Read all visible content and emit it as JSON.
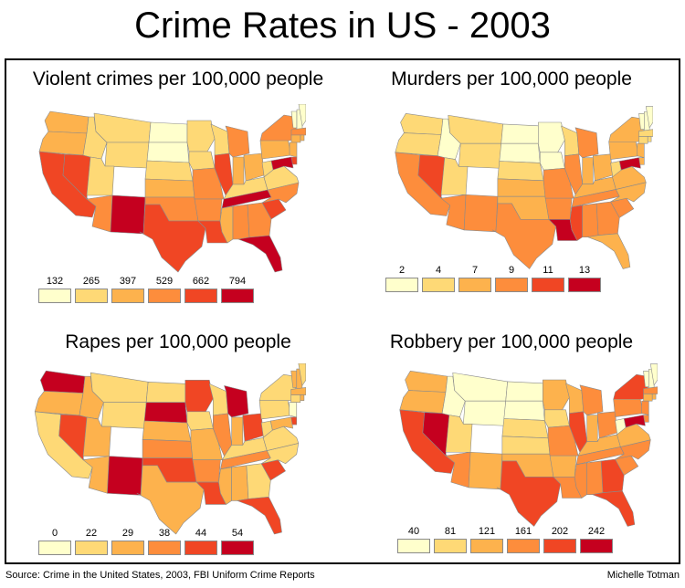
{
  "title": "Crime Rates in US - 2003",
  "source": "Source: Crime in the United States, 2003, FBI Uniform Crime Reports",
  "author": "Michelle Totman",
  "colors": {
    "scale": [
      "#ffffcc",
      "#fed976",
      "#fdb24d",
      "#fd8d3c",
      "#f04624",
      "#c5001f"
    ],
    "border": "#8a8a8a"
  },
  "panels": [
    {
      "id": "violent",
      "title": "Violent crimes per 100,000 people",
      "legend": [
        "132",
        "265",
        "397",
        "529",
        "662",
        "794"
      ],
      "regions": {
        "WA": 2,
        "OR": 2,
        "CA": 4,
        "NV": 4,
        "ID": 1,
        "MT": 1,
        "WY": 1,
        "UT": 1,
        "AZ": 3,
        "NM": 5,
        "ND": 0,
        "SD": 0,
        "NE": 1,
        "KS": 2,
        "OK": 3,
        "TX": 4,
        "MN": 1,
        "IA": 1,
        "MO": 3,
        "AR": 3,
        "LA": 4,
        "WI": 1,
        "IL": 4,
        "MI": 3,
        "IN": 2,
        "OH": 2,
        "KY": 1,
        "TN": 5,
        "MS": 2,
        "AL": 3,
        "GA": 3,
        "FL": 5,
        "SC": 4,
        "NC": 3,
        "VA": 1,
        "WV": 1,
        "PA": 2,
        "NY": 3,
        "VT": 0,
        "NH": 0,
        "ME": 0,
        "MA": 3,
        "CT": 2,
        "NJ": 2,
        "DE": 4,
        "MD": 5,
        "RI": 2
      }
    },
    {
      "id": "murders",
      "title": "Murders per 100,000 people",
      "legend": [
        "2",
        "4",
        "7",
        "9",
        "11",
        "13"
      ],
      "regions": {
        "WA": 1,
        "OR": 1,
        "CA": 3,
        "NV": 4,
        "ID": 0,
        "MT": 1,
        "WY": 1,
        "UT": 1,
        "AZ": 3,
        "NM": 3,
        "ND": 0,
        "SD": 0,
        "NE": 1,
        "KS": 2,
        "OK": 2,
        "TX": 3,
        "MN": 0,
        "IA": 0,
        "MO": 3,
        "AR": 3,
        "LA": 5,
        "WI": 1,
        "IL": 3,
        "MI": 3,
        "IN": 2,
        "OH": 2,
        "KY": 2,
        "TN": 3,
        "MS": 4,
        "AL": 3,
        "GA": 3,
        "FL": 2,
        "SC": 3,
        "NC": 2,
        "VA": 2,
        "WV": 1,
        "PA": 2,
        "NY": 2,
        "VT": 0,
        "NH": 0,
        "ME": 0,
        "MA": 1,
        "CT": 1,
        "NJ": 2,
        "DE": 2,
        "MD": 5,
        "RI": 1
      }
    },
    {
      "id": "rapes",
      "title": "Rapes per 100,000 people",
      "legend": [
        "0",
        "22",
        "29",
        "38",
        "44",
        "54"
      ],
      "regions": {
        "WA": 5,
        "OR": 2,
        "CA": 1,
        "NV": 4,
        "ID": 2,
        "MT": 1,
        "WY": 1,
        "UT": 2,
        "AZ": 2,
        "NM": 5,
        "ND": 1,
        "SD": 5,
        "NE": 2,
        "KS": 3,
        "OK": 4,
        "TX": 2,
        "MN": 4,
        "IA": 1,
        "MO": 2,
        "AR": 3,
        "LA": 4,
        "WI": 1,
        "IL": 3,
        "MI": 5,
        "IN": 2,
        "OH": 4,
        "KY": 1,
        "TN": 3,
        "MS": 2,
        "AL": 2,
        "GA": 1,
        "FL": 4,
        "SC": 4,
        "NC": 1,
        "VA": 1,
        "WV": 1,
        "PA": 1,
        "NY": 1,
        "VT": 2,
        "NH": 2,
        "ME": 1,
        "MA": 2,
        "CT": 1,
        "NJ": 0,
        "DE": 4,
        "MD": 2,
        "RI": 2
      }
    },
    {
      "id": "robbery",
      "title": "Robbery per 100,000 people",
      "legend": [
        "40",
        "81",
        "121",
        "161",
        "202",
        "242"
      ],
      "regions": {
        "WA": 2,
        "OR": 2,
        "CA": 4,
        "NV": 5,
        "ID": 0,
        "MT": 0,
        "WY": 0,
        "UT": 1,
        "AZ": 3,
        "NM": 2,
        "ND": 0,
        "SD": 0,
        "NE": 1,
        "KS": 1,
        "OK": 2,
        "TX": 4,
        "MN": 2,
        "IA": 1,
        "MO": 3,
        "AR": 2,
        "LA": 3,
        "WI": 2,
        "IL": 4,
        "MI": 3,
        "IN": 2,
        "OH": 3,
        "KY": 2,
        "TN": 3,
        "MS": 3,
        "AL": 3,
        "GA": 4,
        "FL": 4,
        "SC": 3,
        "NC": 3,
        "VA": 2,
        "WV": 0,
        "PA": 3,
        "NY": 4,
        "VT": 0,
        "NH": 0,
        "ME": 0,
        "MA": 3,
        "CT": 2,
        "NJ": 3,
        "DE": 3,
        "MD": 5,
        "RI": 2
      }
    }
  ]
}
